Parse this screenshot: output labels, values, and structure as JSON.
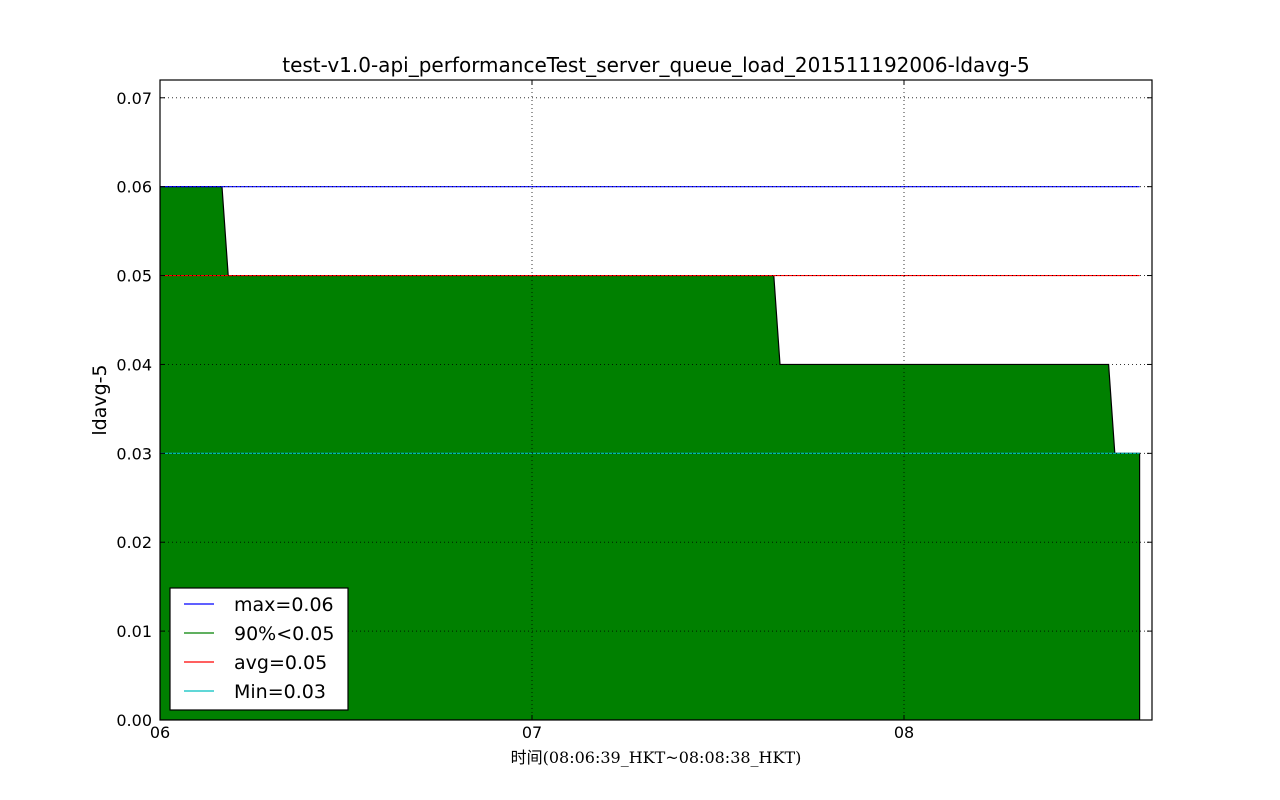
{
  "chart_data": {
    "type": "area",
    "title": "test-v1.0-api_performanceTest_server_queue_load_201511192006-ldavg-5",
    "xlabel": "时间(08:06:39_HKT~08:08:38_HKT)",
    "ylabel": "ldavg-5",
    "xlim": [
      "08:06:00",
      "08:08:40"
    ],
    "ylim": [
      0,
      0.072
    ],
    "grid": true,
    "legend_position": "lower-left",
    "x_ticks": [
      {
        "at": "08:06:00",
        "label": "06"
      },
      {
        "at": "08:07:00",
        "label": "07"
      },
      {
        "at": "08:08:00",
        "label": "08"
      }
    ],
    "y_ticks": [
      {
        "value": 0.0,
        "label": "0.00"
      },
      {
        "value": 0.01,
        "label": "0.01"
      },
      {
        "value": 0.02,
        "label": "0.02"
      },
      {
        "value": 0.03,
        "label": "0.03"
      },
      {
        "value": 0.04,
        "label": "0.04"
      },
      {
        "value": 0.05,
        "label": "0.05"
      },
      {
        "value": 0.06,
        "label": "0.06"
      },
      {
        "value": 0.07,
        "label": "0.07"
      }
    ],
    "series": [
      {
        "name": "90%<0.05",
        "kind": "area",
        "color": "#008000",
        "points": [
          {
            "x": "08:06:00",
            "y": 0.06
          },
          {
            "x": "08:06:10",
            "y": 0.06
          },
          {
            "x": "08:06:11",
            "y": 0.05
          },
          {
            "x": "08:07:00",
            "y": 0.05
          },
          {
            "x": "08:07:00",
            "y": 0.05
          },
          {
            "x": "08:07:00",
            "y": 0.05
          },
          {
            "x": "08:07:00",
            "y": 0.05
          },
          {
            "x": "08:07:00",
            "y": 0.05
          },
          {
            "x": "08:07:00",
            "y": 0.05
          },
          {
            "x": "08:07:39",
            "y": 0.05
          },
          {
            "x": "08:07:40",
            "y": 0.04
          },
          {
            "x": "08:08:33",
            "y": 0.04
          },
          {
            "x": "08:08:34",
            "y": 0.03
          },
          {
            "x": "08:08:38",
            "y": 0.03
          }
        ]
      },
      {
        "name": "max=0.06",
        "kind": "hline",
        "color": "#0000ff",
        "y": 0.06,
        "x_range": [
          "08:06:00",
          "08:08:38"
        ]
      },
      {
        "name": "avg=0.05",
        "kind": "hline",
        "color": "#ff0000",
        "y": 0.05,
        "x_range": [
          "08:06:00",
          "08:08:38"
        ]
      },
      {
        "name": "Min=0.03",
        "kind": "hline",
        "color": "#00bfbf",
        "y": 0.03,
        "x_range": [
          "08:06:00",
          "08:08:38"
        ]
      }
    ],
    "legend": [
      {
        "label": "max=0.06",
        "color": "#0000ff"
      },
      {
        "label": "90%<0.05",
        "color": "#008000"
      },
      {
        "label": "avg=0.05",
        "color": "#ff0000"
      },
      {
        "label": "Min=0.03",
        "color": "#00bfbf"
      }
    ]
  }
}
